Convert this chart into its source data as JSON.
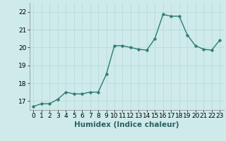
{
  "x": [
    0,
    1,
    2,
    3,
    4,
    5,
    6,
    7,
    8,
    9,
    10,
    11,
    12,
    13,
    14,
    15,
    16,
    17,
    18,
    19,
    20,
    21,
    22,
    23
  ],
  "y": [
    16.7,
    16.85,
    16.85,
    17.1,
    17.5,
    17.4,
    17.4,
    17.5,
    17.5,
    18.5,
    20.1,
    20.1,
    20.0,
    19.9,
    19.85,
    20.5,
    21.85,
    21.75,
    21.75,
    20.7,
    20.1,
    19.9,
    19.85,
    20.4
  ],
  "line_color": "#2d7d6e",
  "marker": "o",
  "marker_size": 2.5,
  "linewidth": 1.0,
  "xlabel": "Humidex (Indice chaleur)",
  "ylim": [
    16.5,
    22.5
  ],
  "xlim": [
    -0.5,
    23.5
  ],
  "yticks": [
    17,
    18,
    19,
    20,
    21,
    22
  ],
  "xticks": [
    0,
    1,
    2,
    3,
    4,
    5,
    6,
    7,
    8,
    9,
    10,
    11,
    12,
    13,
    14,
    15,
    16,
    17,
    18,
    19,
    20,
    21,
    22,
    23
  ],
  "bg_color": "#ceeaea",
  "grid_color": "#b8d8d8",
  "xlabel_fontsize": 7.5,
  "tick_fontsize": 6.5
}
